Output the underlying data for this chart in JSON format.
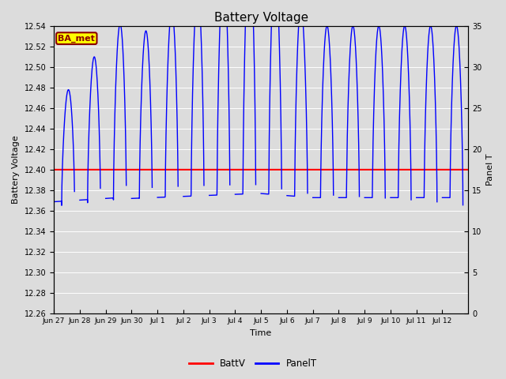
{
  "title": "Battery Voltage",
  "xlabel": "Time",
  "ylabel_left": "Battery Voltage",
  "ylabel_right": "Panel T",
  "ylim_left": [
    12.26,
    12.54
  ],
  "ylim_right": [
    0,
    35
  ],
  "yticks_left": [
    12.26,
    12.28,
    12.3,
    12.32,
    12.34,
    12.36,
    12.38,
    12.4,
    12.42,
    12.44,
    12.46,
    12.48,
    12.5,
    12.52,
    12.54
  ],
  "yticks_right": [
    0,
    5,
    10,
    15,
    20,
    25,
    30,
    35
  ],
  "bg_color": "#dcdcdc",
  "plot_bg_color": "#dcdcdc",
  "battv_value": 12.4,
  "battv_color": "red",
  "panelt_color": "blue",
  "legend_items": [
    {
      "label": "BattV",
      "color": "red"
    },
    {
      "label": "PanelT",
      "color": "blue"
    }
  ],
  "annotation_text": "BA_met",
  "annotation_bg": "#ffff00",
  "annotation_border": "#8b0000",
  "x_tick_labels": [
    "Jun 27",
    "Jun 28",
    "Jun 29",
    "Jun 30",
    "Jul 1",
    "Jul 2",
    "Jul 3",
    "Jul 4",
    "Jul 5",
    "Jul 6",
    "Jul 7",
    "Jul 8",
    "Jul 9",
    "Jul 10",
    "Jul 11",
    "Jul 12"
  ],
  "num_ticks": 16,
  "xlim": [
    0,
    16
  ]
}
